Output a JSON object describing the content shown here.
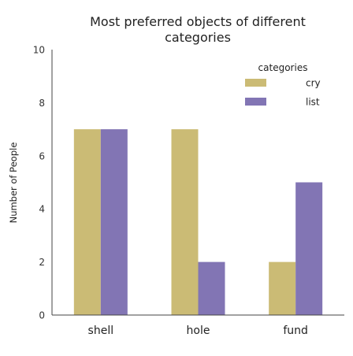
{
  "chart_data": {
    "type": "bar",
    "title_lines": [
      "Most preferred objects of different",
      "categories"
    ],
    "ylabel": "Number of People",
    "xlabel": "",
    "categories": [
      "shell",
      "hole",
      "fund"
    ],
    "series": [
      {
        "name": "cry",
        "color": "#cbbb75",
        "values": [
          7,
          7,
          2
        ]
      },
      {
        "name": "list",
        "color": "#8275b4",
        "values": [
          7,
          2,
          5
        ]
      }
    ],
    "ylim": [
      0,
      10
    ],
    "yticks": [
      0,
      2,
      4,
      6,
      8,
      10
    ],
    "grid": false,
    "legend": {
      "title": "categories",
      "placement": "top-right"
    }
  }
}
